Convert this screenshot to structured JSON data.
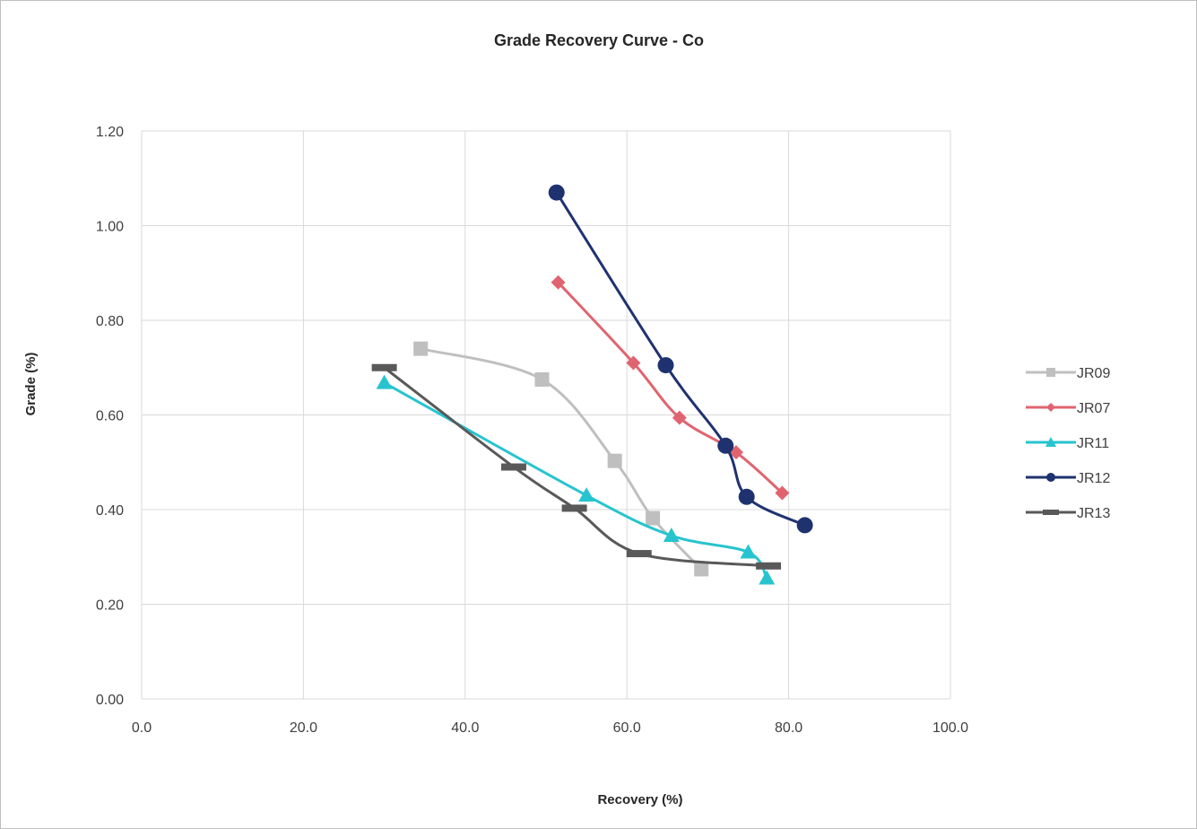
{
  "chart_data": {
    "type": "scatter",
    "title": "Grade Recovery Curve - Co",
    "xlabel": "Recovery (%)",
    "ylabel": "Grade (%)",
    "xlim": [
      0,
      100
    ],
    "ylim": [
      0,
      1.2
    ],
    "x_ticks": [
      "0.0",
      "20.0",
      "40.0",
      "60.0",
      "80.0",
      "100.0"
    ],
    "y_ticks": [
      "0.00",
      "0.20",
      "0.40",
      "0.60",
      "0.80",
      "1.00",
      "1.20"
    ],
    "grid": true,
    "legend_position": "right",
    "series": [
      {
        "name": "JR09",
        "color": "#bfbfbf",
        "marker": "square",
        "points": [
          [
            34.5,
            0.74
          ],
          [
            49.5,
            0.675
          ],
          [
            58.5,
            0.503
          ],
          [
            63.2,
            0.382
          ],
          [
            69.2,
            0.274
          ]
        ]
      },
      {
        "name": "JR07",
        "color": "#e06470",
        "marker": "diamond",
        "points": [
          [
            51.5,
            0.88
          ],
          [
            60.8,
            0.71
          ],
          [
            66.5,
            0.594
          ],
          [
            73.5,
            0.521
          ],
          [
            79.2,
            0.435
          ]
        ]
      },
      {
        "name": "JR11",
        "color": "#27c4cf",
        "marker": "triangle",
        "points": [
          [
            30.0,
            0.668
          ],
          [
            55.0,
            0.43
          ],
          [
            65.5,
            0.345
          ],
          [
            75.0,
            0.31
          ],
          [
            77.3,
            0.255
          ]
        ]
      },
      {
        "name": "JR12",
        "color": "#1f3270",
        "marker": "circle",
        "points": [
          [
            51.3,
            1.07
          ],
          [
            64.8,
            0.705
          ],
          [
            72.2,
            0.535
          ],
          [
            74.8,
            0.427
          ],
          [
            82.0,
            0.367
          ]
        ]
      },
      {
        "name": "JR13",
        "color": "#595959",
        "marker": "dash",
        "points": [
          [
            30.0,
            0.7
          ],
          [
            46.0,
            0.49
          ],
          [
            53.5,
            0.403
          ],
          [
            61.5,
            0.307
          ],
          [
            77.5,
            0.281
          ]
        ]
      }
    ]
  }
}
